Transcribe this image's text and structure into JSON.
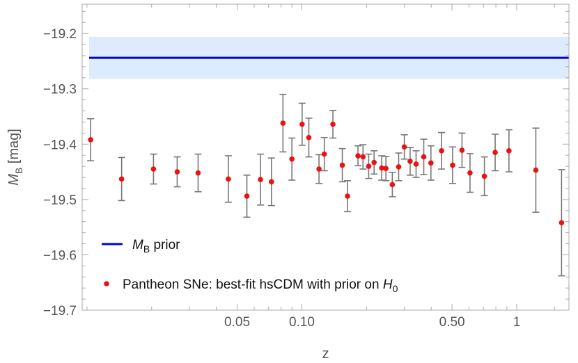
{
  "chart_data": {
    "type": "scatter",
    "xlabel": "z",
    "ylabel_main": "M",
    "ylabel_sub": "B",
    "ylabel_unit": " [mag]",
    "x_scale": "log",
    "xlim": [
      0.0095,
      1.75
    ],
    "ylim": [
      -19.7,
      -19.147
    ],
    "x_ticks": [
      {
        "value": 0.05,
        "label": "0.05"
      },
      {
        "value": 0.1,
        "label": "0.10"
      },
      {
        "value": 0.5,
        "label": "0.50"
      },
      {
        "value": 1,
        "label": "1"
      }
    ],
    "y_ticks": [
      {
        "value": -19.2,
        "label": "−19.2"
      },
      {
        "value": -19.3,
        "label": "−19.3"
      },
      {
        "value": -19.4,
        "label": "−19.4"
      },
      {
        "value": -19.5,
        "label": "−19.5"
      },
      {
        "value": -19.6,
        "label": "−19.6"
      },
      {
        "value": -19.7,
        "label": "−19.7"
      }
    ],
    "prior": {
      "value": -19.244,
      "band": [
        -19.282,
        -19.206
      ],
      "line_color": "#0000dd",
      "band_color": "#dcecfc"
    },
    "points_color": "#ee1111",
    "errorbar_color": "#777777",
    "series": [
      {
        "name_parts": [
          "Pantheon SNe: best-fit hsCDM with prior on ",
          "H",
          "0"
        ],
        "points": [
          {
            "x": 0.0104,
            "y": -19.392,
            "err": 0.038
          },
          {
            "x": 0.0145,
            "y": -19.463,
            "err": 0.039
          },
          {
            "x": 0.0204,
            "y": -19.445,
            "err": 0.027
          },
          {
            "x": 0.0263,
            "y": -19.45,
            "err": 0.027
          },
          {
            "x": 0.0329,
            "y": -19.452,
            "err": 0.034
          },
          {
            "x": 0.0455,
            "y": -19.463,
            "err": 0.042
          },
          {
            "x": 0.0555,
            "y": -19.494,
            "err": 0.038
          },
          {
            "x": 0.0642,
            "y": -19.464,
            "err": 0.046
          },
          {
            "x": 0.0722,
            "y": -19.468,
            "err": 0.043
          },
          {
            "x": 0.0817,
            "y": -19.362,
            "err": 0.052
          },
          {
            "x": 0.0899,
            "y": -19.427,
            "err": 0.038
          },
          {
            "x": 0.1003,
            "y": -19.364,
            "err": 0.038
          },
          {
            "x": 0.1078,
            "y": -19.388,
            "err": 0.035
          },
          {
            "x": 0.1202,
            "y": -19.445,
            "err": 0.026
          },
          {
            "x": 0.1272,
            "y": -19.418,
            "err": 0.03
          },
          {
            "x": 0.1395,
            "y": -19.364,
            "err": 0.025
          },
          {
            "x": 0.1543,
            "y": -19.438,
            "err": 0.03
          },
          {
            "x": 0.1631,
            "y": -19.494,
            "err": 0.028
          },
          {
            "x": 0.1825,
            "y": -19.421,
            "err": 0.018
          },
          {
            "x": 0.1926,
            "y": -19.423,
            "err": 0.022
          },
          {
            "x": 0.2047,
            "y": -19.44,
            "err": 0.022
          },
          {
            "x": 0.2169,
            "y": -19.433,
            "err": 0.021
          },
          {
            "x": 0.2354,
            "y": -19.443,
            "err": 0.022
          },
          {
            "x": 0.2462,
            "y": -19.444,
            "err": 0.022
          },
          {
            "x": 0.2637,
            "y": -19.473,
            "err": 0.022
          },
          {
            "x": 0.2822,
            "y": -19.441,
            "err": 0.025
          },
          {
            "x": 0.2999,
            "y": -19.405,
            "err": 0.022
          },
          {
            "x": 0.3191,
            "y": -19.431,
            "err": 0.025
          },
          {
            "x": 0.3401,
            "y": -19.436,
            "err": 0.024
          },
          {
            "x": 0.3693,
            "y": -19.423,
            "err": 0.032
          },
          {
            "x": 0.3988,
            "y": -19.434,
            "err": 0.031
          },
          {
            "x": 0.4469,
            "y": -19.412,
            "err": 0.033
          },
          {
            "x": 0.5031,
            "y": -19.438,
            "err": 0.033
          },
          {
            "x": 0.5562,
            "y": -19.411,
            "err": 0.031
          },
          {
            "x": 0.6062,
            "y": -19.452,
            "err": 0.035
          },
          {
            "x": 0.7072,
            "y": -19.458,
            "err": 0.035
          },
          {
            "x": 0.7938,
            "y": -19.415,
            "err": 0.033
          },
          {
            "x": 0.9202,
            "y": -19.412,
            "err": 0.038
          },
          {
            "x": 1.2273,
            "y": -19.447,
            "err": 0.076
          },
          {
            "x": 1.6166,
            "y": -19.542,
            "err": 0.096
          }
        ]
      }
    ],
    "legend": {
      "position": "bottom-left",
      "prior_label_main": "M",
      "prior_label_sub": "B",
      "prior_label_rest": " prior"
    }
  }
}
